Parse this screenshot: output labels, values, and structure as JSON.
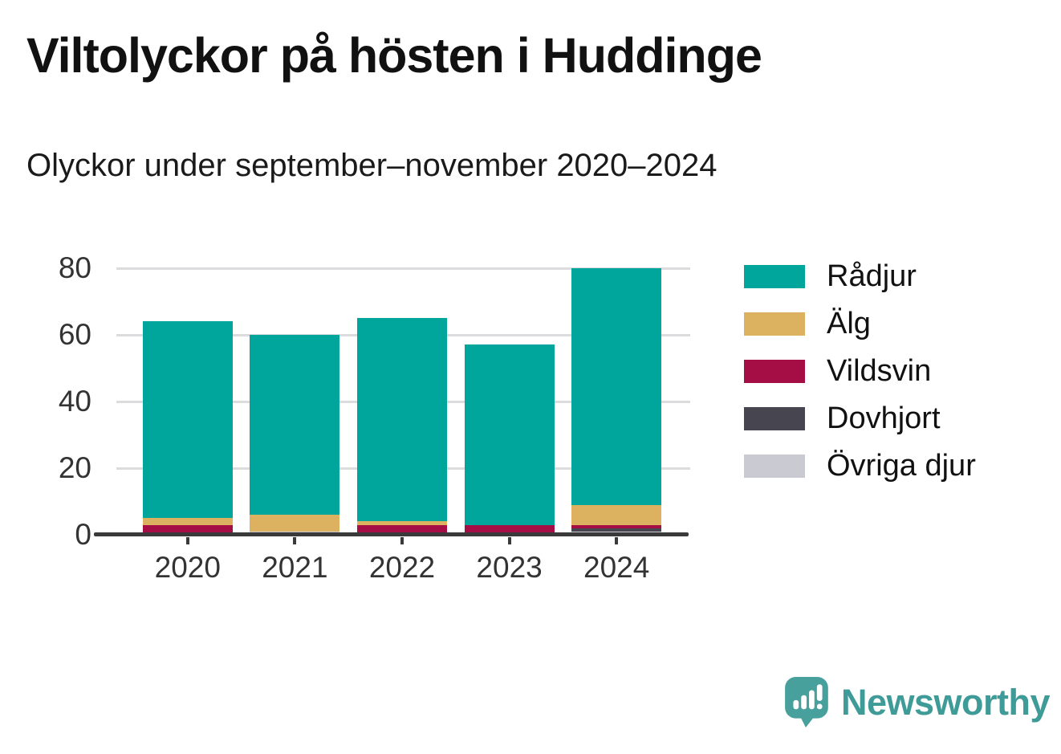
{
  "title": "Viltolyckor på hösten i Huddinge",
  "subtitle": "Olyckor under september–november 2020–2024",
  "footer": {
    "brand": "Newsworthy",
    "brand_color": "#3f9b97",
    "logo_color": "#47a09c"
  },
  "chart_data": {
    "type": "bar",
    "stacked": true,
    "title": "Viltolyckor på hösten i Huddinge",
    "subtitle": "Olyckor under september–november 2020–2024",
    "categories": [
      "2020",
      "2021",
      "2022",
      "2023",
      "2024"
    ],
    "series": [
      {
        "name": "Rådjur",
        "color": "#00a59b",
        "values": [
          59,
          54,
          61,
          54,
          71
        ]
      },
      {
        "name": "Älg",
        "color": "#dcb15f",
        "values": [
          2,
          5,
          1,
          0,
          6
        ]
      },
      {
        "name": "Vildsvin",
        "color": "#a50e45",
        "values": [
          3,
          0,
          3,
          3,
          1
        ]
      },
      {
        "name": "Dovhjort",
        "color": "#464550",
        "values": [
          0,
          0,
          0,
          0,
          1
        ]
      },
      {
        "name": "Övriga djur",
        "color": "#c9cad2",
        "values": [
          0,
          1,
          0,
          0,
          1
        ]
      }
    ],
    "totals": [
      64,
      60,
      65,
      57,
      80
    ],
    "stack_order_bottom_to_top": [
      "Övriga djur",
      "Dovhjort",
      "Vildsvin",
      "Älg",
      "Rådjur"
    ],
    "xlabel": "",
    "ylabel": "",
    "ylim": [
      0,
      80
    ],
    "yticks": [
      0,
      20,
      40,
      60,
      80
    ],
    "grid": "horizontal",
    "legend_position": "right",
    "colors": {
      "axis": "#3a3a3a",
      "gridline": "#dcdcde",
      "tick_label": "#333333"
    }
  }
}
